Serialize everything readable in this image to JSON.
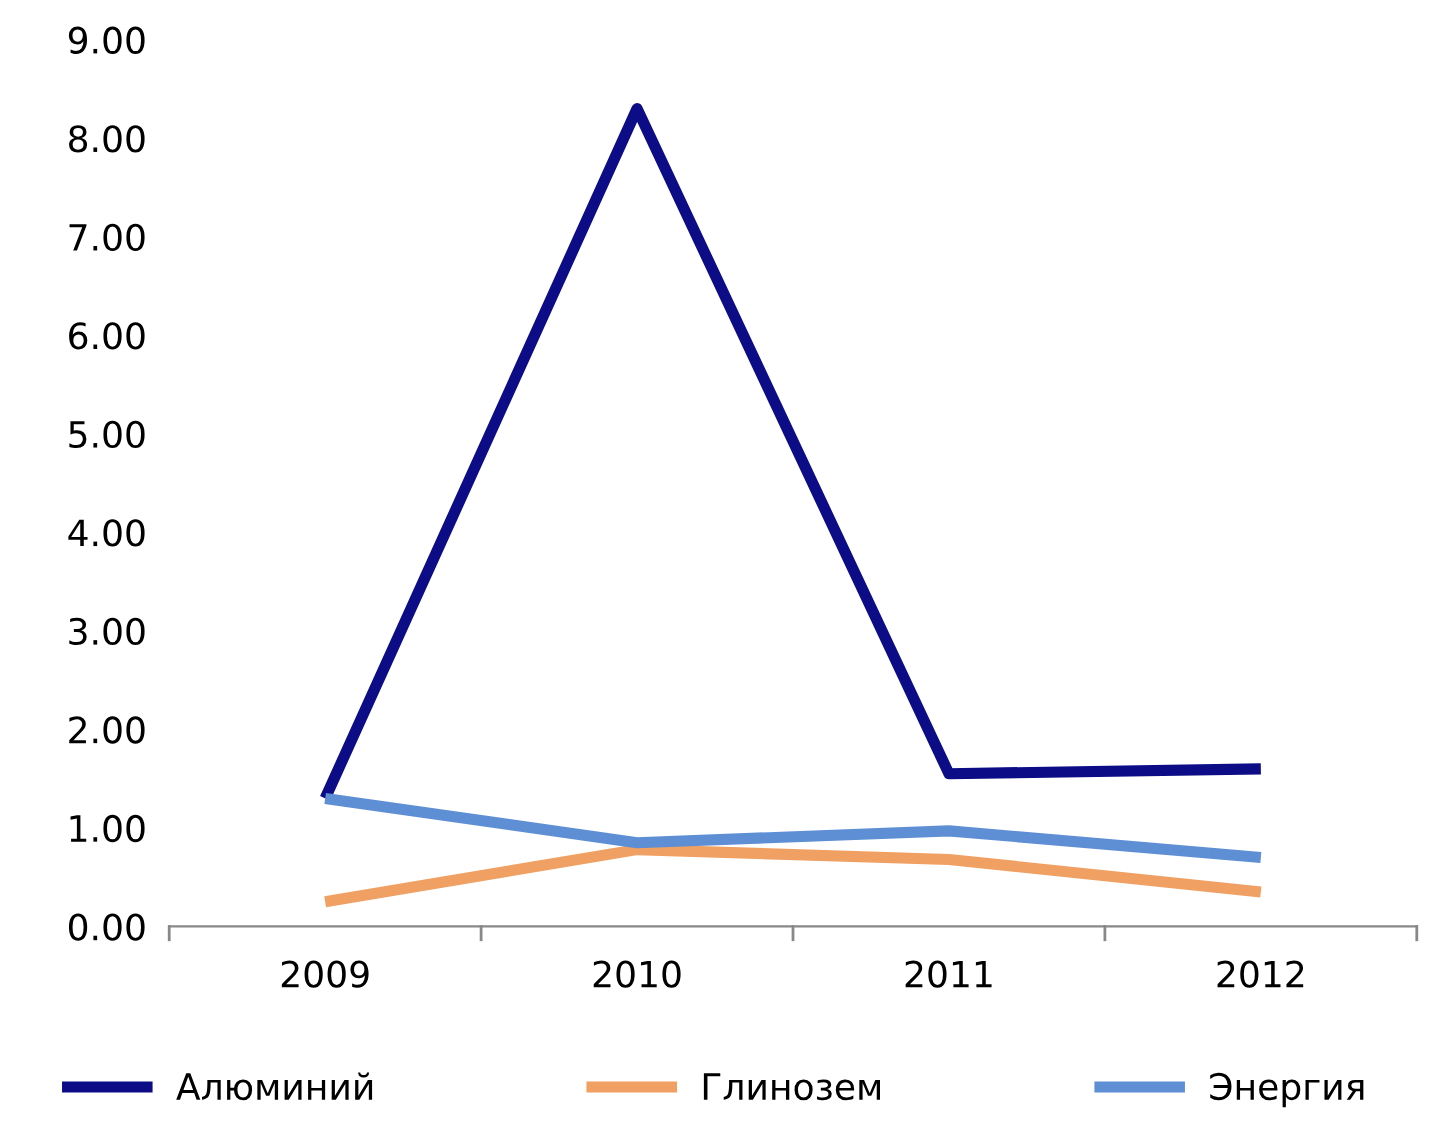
{
  "chart_data": {
    "type": "line",
    "categories": [
      "2009",
      "2010",
      "2011",
      "2012"
    ],
    "series": [
      {
        "name": "Алюминий",
        "color": "#0c0c86",
        "values": [
          1.3,
          8.3,
          1.55,
          1.6
        ]
      },
      {
        "name": "Глинозем",
        "color": "#f0a062",
        "values": [
          0.25,
          0.78,
          0.68,
          0.35
        ]
      },
      {
        "name": "Энергия",
        "color": "#5e8fd4",
        "values": [
          1.3,
          0.85,
          0.97,
          0.7
        ]
      }
    ],
    "ylim": [
      0,
      9
    ],
    "yticks": [
      {
        "value": 0,
        "label": "0.00"
      },
      {
        "value": 1,
        "label": "1.00"
      },
      {
        "value": 2,
        "label": "2.00"
      },
      {
        "value": 3,
        "label": "3.00"
      },
      {
        "value": 4,
        "label": "4.00"
      },
      {
        "value": 5,
        "label": "5.00"
      },
      {
        "value": 6,
        "label": "6.00"
      },
      {
        "value": 7,
        "label": "7.00"
      },
      {
        "value": 8,
        "label": "8.00"
      },
      {
        "value": 9,
        "label": "9.00"
      }
    ],
    "grid": false,
    "legend": "bottom",
    "marker": "none",
    "line_style": "solid"
  }
}
